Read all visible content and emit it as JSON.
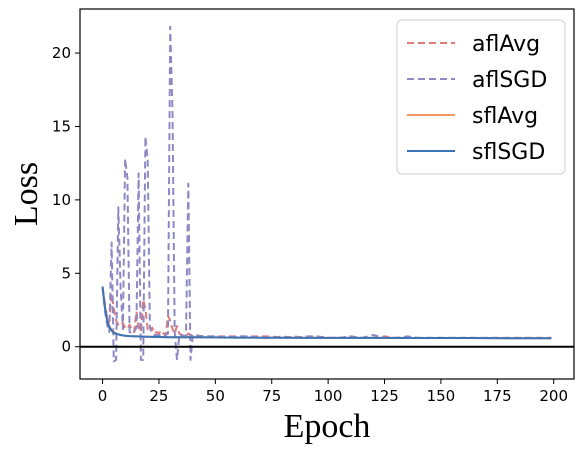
{
  "chart_data": {
    "type": "line",
    "title": "",
    "xlabel": "Epoch",
    "ylabel": "Loss",
    "xlim": [
      -10,
      209
    ],
    "ylim": [
      -2.2,
      23
    ],
    "xticks": [
      0,
      25,
      50,
      75,
      100,
      125,
      150,
      175,
      200
    ],
    "yticks": [
      0,
      5,
      10,
      15,
      20
    ],
    "grid": false,
    "legend_position": "top-right",
    "reference_line": {
      "y": 0,
      "color": "#000000"
    },
    "series": [
      {
        "name": "aflAvg",
        "color": "#e07b7b",
        "style": "dashed",
        "x": [
          0,
          1,
          2,
          3,
          4,
          5,
          6,
          7,
          8,
          9,
          10,
          11,
          12,
          13,
          14,
          15,
          16,
          17,
          18,
          19,
          20,
          21,
          22,
          23,
          24,
          25,
          26,
          27,
          28,
          29,
          30,
          31,
          32,
          33,
          34,
          35,
          36,
          37,
          38,
          39,
          40,
          45,
          50,
          55,
          60,
          65,
          70,
          75,
          80,
          85,
          90,
          95,
          100,
          105,
          110,
          115,
          120,
          125,
          130,
          135,
          140,
          145,
          150,
          155,
          160,
          165,
          170,
          175,
          180,
          185,
          190,
          195,
          199
        ],
        "values": [
          4.0,
          3.0,
          2.0,
          1.7,
          3.6,
          2.6,
          1.8,
          1.5,
          1.4,
          1.6,
          1.3,
          1.2,
          1.5,
          1.1,
          1.0,
          2.4,
          1.3,
          1.0,
          3.2,
          2.6,
          1.2,
          1.0,
          1.3,
          0.9,
          1.0,
          0.9,
          1.1,
          0.9,
          0.8,
          2.1,
          1.8,
          1.2,
          0.9,
          1.4,
          0.9,
          0.8,
          0.8,
          0.7,
          0.9,
          0.8,
          0.8,
          0.7,
          0.7,
          0.7,
          0.7,
          0.7,
          0.7,
          0.7,
          0.6,
          0.7,
          0.6,
          0.7,
          0.6,
          0.6,
          0.7,
          0.6,
          0.6,
          0.7,
          0.6,
          0.6,
          0.6,
          0.6,
          0.6,
          0.6,
          0.6,
          0.6,
          0.6,
          0.6,
          0.6,
          0.6,
          0.6,
          0.6,
          0.6
        ]
      },
      {
        "name": "aflSGD",
        "color": "#8e89c4",
        "style": "dashed",
        "x": [
          0,
          1,
          2,
          3,
          4,
          5,
          6,
          7,
          8,
          9,
          10,
          11,
          12,
          13,
          14,
          15,
          16,
          17,
          18,
          19,
          20,
          21,
          22,
          23,
          24,
          25,
          26,
          27,
          28,
          29,
          30,
          31,
          32,
          33,
          34,
          35,
          36,
          37,
          38,
          39,
          40,
          45,
          50,
          55,
          60,
          65,
          70,
          75,
          80,
          85,
          90,
          95,
          100,
          105,
          110,
          115,
          120,
          125,
          130,
          135,
          140,
          145,
          150,
          155,
          160,
          165,
          170,
          175,
          180,
          185,
          190,
          195,
          199
        ],
        "values": [
          4.0,
          2.5,
          1.5,
          1.0,
          7.1,
          -1.0,
          -0.9,
          9.5,
          4.0,
          1.2,
          12.8,
          11.5,
          1.0,
          0.9,
          1.0,
          1.3,
          11.8,
          -0.9,
          -0.9,
          14.3,
          12.7,
          1.3,
          0.9,
          0.8,
          0.8,
          0.8,
          0.8,
          0.7,
          0.8,
          0.9,
          21.8,
          16.0,
          1.0,
          -0.9,
          0.8,
          0.8,
          0.7,
          0.8,
          11.1,
          -0.9,
          0.8,
          0.7,
          0.7,
          0.6,
          0.7,
          0.7,
          0.6,
          0.6,
          0.7,
          0.6,
          0.7,
          0.7,
          0.6,
          0.6,
          0.7,
          0.6,
          0.8,
          0.6,
          0.6,
          0.7,
          0.6,
          0.6,
          0.6,
          0.6,
          0.6,
          0.6,
          0.6,
          0.6,
          0.6,
          0.6,
          0.6,
          0.6,
          0.6
        ]
      },
      {
        "name": "sflAvg",
        "color": "#f4965e",
        "style": "solid",
        "x": [
          0,
          1,
          2,
          3,
          4,
          5,
          6,
          8,
          10,
          12,
          15,
          20,
          25,
          30,
          40,
          50,
          60,
          80,
          100,
          120,
          140,
          160,
          180,
          199
        ],
        "values": [
          4.0,
          2.8,
          1.9,
          1.4,
          1.15,
          1.0,
          0.9,
          0.8,
          0.75,
          0.72,
          0.7,
          0.68,
          0.66,
          0.65,
          0.64,
          0.63,
          0.62,
          0.61,
          0.6,
          0.6,
          0.59,
          0.59,
          0.58,
          0.58
        ]
      },
      {
        "name": "sflSGD",
        "color": "#3a73b6",
        "style": "solid",
        "x": [
          0,
          1,
          2,
          3,
          4,
          5,
          6,
          8,
          10,
          12,
          15,
          20,
          25,
          30,
          40,
          50,
          60,
          80,
          100,
          120,
          140,
          160,
          180,
          199
        ],
        "values": [
          4.1,
          2.7,
          1.8,
          1.35,
          1.1,
          0.95,
          0.88,
          0.8,
          0.75,
          0.72,
          0.7,
          0.68,
          0.66,
          0.65,
          0.64,
          0.63,
          0.62,
          0.61,
          0.6,
          0.6,
          0.59,
          0.59,
          0.58,
          0.58
        ]
      }
    ]
  }
}
